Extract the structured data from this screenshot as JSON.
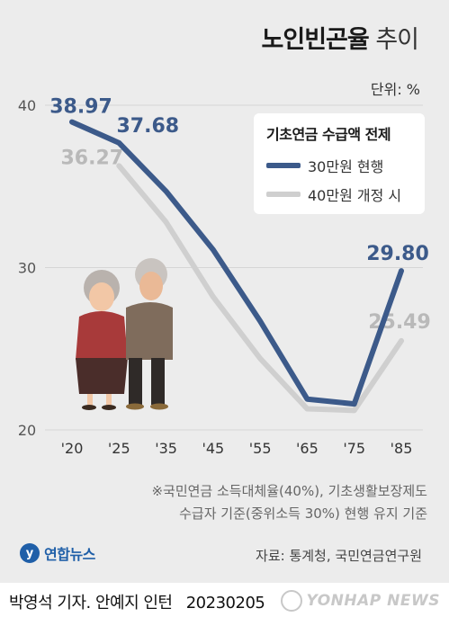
{
  "header": {
    "title_bold": "노인빈곤율",
    "title_light": "추이",
    "unit": "단위: %"
  },
  "legend": {
    "title": "기초연금 수급액 전제",
    "items": [
      {
        "label": "30만원 현행",
        "color": "#3c5a8a"
      },
      {
        "label": "40만원 개정 시",
        "color": "#cfcfcf"
      }
    ]
  },
  "chart_data": {
    "type": "line",
    "x": [
      "'20",
      "'25",
      "'35",
      "'45",
      "'55",
      "'65",
      "'75",
      "'85"
    ],
    "ylim": [
      20,
      40
    ],
    "yticks": [
      "40",
      "30",
      "20"
    ],
    "grid": true,
    "series": [
      {
        "name": "30만원 현행",
        "color": "#3c5a8a",
        "values": [
          38.97,
          37.68,
          34.7,
          31.1,
          26.7,
          21.9,
          21.6,
          29.8
        ],
        "labels": [
          "38.97",
          "37.68",
          "",
          "",
          "",
          "",
          "",
          "29.80"
        ]
      },
      {
        "name": "40만원 개정 시",
        "color": "#cfcfcf",
        "values": [
          null,
          36.27,
          32.8,
          28.2,
          24.4,
          21.3,
          21.2,
          25.49
        ],
        "labels": [
          "",
          "36.27",
          "",
          "",
          "",
          "",
          "",
          "25.49"
        ]
      }
    ]
  },
  "note": {
    "line1": "※국민연금 소득대체율(40%), 기초생활보장제도",
    "line2": "수급자 기준(중위소득 30%) 현행 유지 기준"
  },
  "footer": {
    "logo_text": "연합뉴스",
    "source": "자료: 통계청, 국민연금연구원",
    "credit": "박영석 기자. 안예지 인턴",
    "date": "20230205",
    "watermark": "YONHAP NEWS"
  }
}
